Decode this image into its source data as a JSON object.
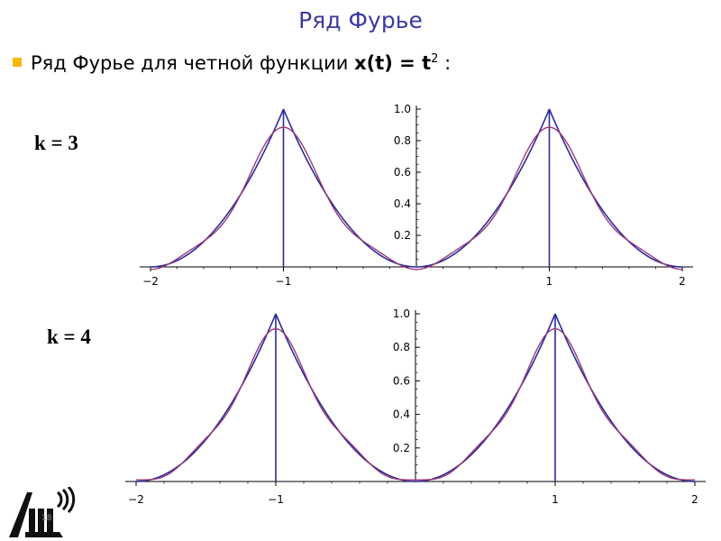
{
  "slide": {
    "title": "Ряд Фурье",
    "bullet_text": "Ряд Фурье для четной функции ",
    "formula_main": "x(t) = t",
    "formula_sup": "2",
    "formula_tail": " :",
    "slide_number": "18",
    "colors": {
      "title": "#3a3aa0",
      "bullet": "#f5b800",
      "original": "#2a2a9a",
      "approximation": "#9a3a78"
    },
    "logo_icon": "institute-logo-icon"
  },
  "chart_data": [
    {
      "type": "line",
      "label": "k = 3",
      "x_ticks": [
        "−2",
        "−1",
        "1",
        "2"
      ],
      "y_ticks": [
        "0.2",
        "0.4",
        "0.6",
        "0.8",
        "1.0"
      ],
      "xlim": [
        -2,
        2
      ],
      "ylim": [
        0,
        1
      ],
      "grid": false,
      "series": [
        {
          "role": "original",
          "description": "periodic extension of t^2 with period 2, jumps at t = ±1",
          "max_value": 1.0
        },
        {
          "role": "approximation",
          "k": 3,
          "peak_value": 0.89
        }
      ]
    },
    {
      "type": "line",
      "label": "k = 4",
      "x_ticks": [
        "−2",
        "−1",
        "1",
        "2"
      ],
      "y_ticks": [
        "0.2",
        "0.4",
        "0.6",
        "0.8",
        "1.0"
      ],
      "xlim": [
        -2,
        2
      ],
      "ylim": [
        0,
        1
      ],
      "grid": false,
      "series": [
        {
          "role": "original",
          "description": "periodic extension of t^2 with period 2, jumps at t = ±1",
          "max_value": 1.0
        },
        {
          "role": "approximation",
          "k": 4,
          "peak_value": 0.91
        }
      ]
    }
  ]
}
